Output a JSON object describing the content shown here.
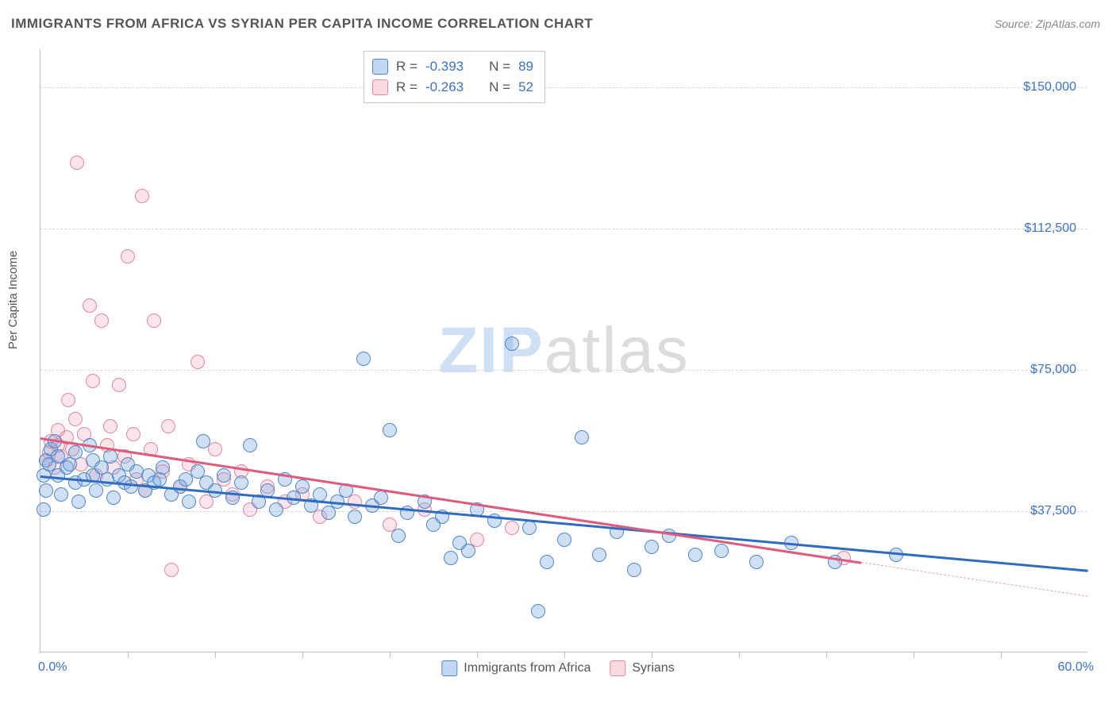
{
  "title": "IMMIGRANTS FROM AFRICA VS SYRIAN PER CAPITA INCOME CORRELATION CHART",
  "source": "Source: ZipAtlas.com",
  "yaxis_label": "Per Capita Income",
  "watermark": {
    "zip": "ZIP",
    "atlas": "atlas"
  },
  "chart": {
    "type": "scatter",
    "background_color": "#ffffff",
    "grid_color": "#d7d7d7",
    "axis_color": "#bfbfbf",
    "tick_label_color": "#3a72c8",
    "xlim": [
      0,
      60
    ],
    "ylim": [
      0,
      160000
    ],
    "yticks": [
      {
        "value": 37500,
        "label": "$37,500"
      },
      {
        "value": 75000,
        "label": "$75,000"
      },
      {
        "value": 112500,
        "label": "$112,500"
      },
      {
        "value": 150000,
        "label": "$150,000"
      }
    ],
    "xticks_minor": [
      5,
      10,
      15,
      20,
      25,
      30,
      35,
      40,
      45,
      50,
      55
    ],
    "xaxis_label_left": "0.0%",
    "xaxis_label_right": "60.0%",
    "point_radius": 9,
    "series": [
      {
        "name": "Immigrants from Africa",
        "key": "blue",
        "fill_color": "rgba(120,167,224,0.35)",
        "stroke_color": "#4f87cf",
        "r_value": "-0.393",
        "n_value": "89",
        "trend": {
          "x1": 0,
          "y1": 47000,
          "x2": 60,
          "y2": 22000,
          "color": "#2f6bc0",
          "width": 3
        },
        "points": [
          [
            0.2,
            47000
          ],
          [
            0.2,
            38000
          ],
          [
            0.3,
            51000
          ],
          [
            0.3,
            43000
          ],
          [
            0.5,
            50000
          ],
          [
            0.6,
            54000
          ],
          [
            0.8,
            56000
          ],
          [
            1.0,
            52000
          ],
          [
            1.0,
            47000
          ],
          [
            1.2,
            42000
          ],
          [
            1.5,
            49000
          ],
          [
            1.7,
            50000
          ],
          [
            2.0,
            53000
          ],
          [
            2.0,
            45000
          ],
          [
            2.2,
            40000
          ],
          [
            2.5,
            46000
          ],
          [
            2.8,
            55000
          ],
          [
            3.0,
            47000
          ],
          [
            3.0,
            51000
          ],
          [
            3.2,
            43000
          ],
          [
            3.5,
            49000
          ],
          [
            3.8,
            46000
          ],
          [
            4.0,
            52000
          ],
          [
            4.2,
            41000
          ],
          [
            4.5,
            47000
          ],
          [
            4.8,
            45000
          ],
          [
            5.0,
            50000
          ],
          [
            5.2,
            44000
          ],
          [
            5.5,
            48000
          ],
          [
            6.0,
            43000
          ],
          [
            6.2,
            47000
          ],
          [
            6.5,
            45000
          ],
          [
            6.8,
            46000
          ],
          [
            7.0,
            49000
          ],
          [
            7.5,
            42000
          ],
          [
            8.0,
            44000
          ],
          [
            8.3,
            46000
          ],
          [
            8.5,
            40000
          ],
          [
            9.0,
            48000
          ],
          [
            9.3,
            56000
          ],
          [
            9.5,
            45000
          ],
          [
            10.0,
            43000
          ],
          [
            10.5,
            47000
          ],
          [
            11.0,
            41000
          ],
          [
            11.5,
            45000
          ],
          [
            12.0,
            55000
          ],
          [
            12.5,
            40000
          ],
          [
            13.0,
            43000
          ],
          [
            13.5,
            38000
          ],
          [
            14.0,
            46000
          ],
          [
            14.5,
            41000
          ],
          [
            15.0,
            44000
          ],
          [
            15.5,
            39000
          ],
          [
            16.0,
            42000
          ],
          [
            16.5,
            37000
          ],
          [
            17.0,
            40000
          ],
          [
            17.5,
            43000
          ],
          [
            18.0,
            36000
          ],
          [
            18.5,
            78000
          ],
          [
            19.0,
            39000
          ],
          [
            19.5,
            41000
          ],
          [
            20.0,
            59000
          ],
          [
            20.5,
            31000
          ],
          [
            21.0,
            37000
          ],
          [
            22.0,
            40000
          ],
          [
            22.5,
            34000
          ],
          [
            23.0,
            36000
          ],
          [
            23.5,
            25000
          ],
          [
            24.0,
            29000
          ],
          [
            24.5,
            27000
          ],
          [
            25.0,
            38000
          ],
          [
            26.0,
            35000
          ],
          [
            27.0,
            82000
          ],
          [
            28.0,
            33000
          ],
          [
            29.0,
            24000
          ],
          [
            30.0,
            30000
          ],
          [
            31.0,
            57000
          ],
          [
            32.0,
            26000
          ],
          [
            33.0,
            32000
          ],
          [
            34.0,
            22000
          ],
          [
            35.0,
            28000
          ],
          [
            36.0,
            31000
          ],
          [
            37.5,
            26000
          ],
          [
            39.0,
            27000
          ],
          [
            41.0,
            24000
          ],
          [
            43.0,
            29000
          ],
          [
            45.5,
            24000
          ],
          [
            49.0,
            26000
          ],
          [
            28.5,
            11000
          ]
        ]
      },
      {
        "name": "Syrians",
        "key": "pink",
        "fill_color": "rgba(240,150,170,0.25)",
        "stroke_color": "#e3869e",
        "r_value": "-0.263",
        "n_value": "52",
        "trend": {
          "x1": 0,
          "y1": 57000,
          "x2": 47,
          "y2": 24000,
          "color": "#e05a7d",
          "width": 3
        },
        "trend_dash": {
          "x1": 47,
          "y1": 24000,
          "x2": 60,
          "y2": 15000,
          "color": "#e9a0b2"
        },
        "points": [
          [
            0.3,
            51000
          ],
          [
            0.5,
            53000
          ],
          [
            0.6,
            56000
          ],
          [
            0.8,
            49000
          ],
          [
            1.0,
            55000
          ],
          [
            1.0,
            59000
          ],
          [
            1.2,
            52000
          ],
          [
            1.5,
            57000
          ],
          [
            1.6,
            67000
          ],
          [
            1.8,
            54000
          ],
          [
            2.0,
            62000
          ],
          [
            2.1,
            130000
          ],
          [
            2.3,
            50000
          ],
          [
            2.5,
            58000
          ],
          [
            2.8,
            92000
          ],
          [
            3.0,
            72000
          ],
          [
            3.2,
            47000
          ],
          [
            3.5,
            88000
          ],
          [
            3.8,
            55000
          ],
          [
            4.0,
            60000
          ],
          [
            4.2,
            49000
          ],
          [
            4.5,
            71000
          ],
          [
            4.8,
            52000
          ],
          [
            5.0,
            105000
          ],
          [
            5.3,
            58000
          ],
          [
            5.5,
            46000
          ],
          [
            5.8,
            121000
          ],
          [
            6.0,
            43000
          ],
          [
            6.3,
            54000
          ],
          [
            6.5,
            88000
          ],
          [
            7.0,
            48000
          ],
          [
            7.3,
            60000
          ],
          [
            7.5,
            22000
          ],
          [
            8.0,
            44000
          ],
          [
            8.5,
            50000
          ],
          [
            9.0,
            77000
          ],
          [
            9.5,
            40000
          ],
          [
            10.0,
            54000
          ],
          [
            10.5,
            46000
          ],
          [
            11.0,
            42000
          ],
          [
            11.5,
            48000
          ],
          [
            12.0,
            38000
          ],
          [
            13.0,
            44000
          ],
          [
            14.0,
            40000
          ],
          [
            15.0,
            42000
          ],
          [
            16.0,
            36000
          ],
          [
            18.0,
            40000
          ],
          [
            20.0,
            34000
          ],
          [
            22.0,
            38000
          ],
          [
            25.0,
            30000
          ],
          [
            27.0,
            33000
          ],
          [
            46.0,
            25000
          ]
        ]
      }
    ]
  },
  "stats_box": {
    "rows": [
      {
        "swatch": "blue",
        "r_label": "R =",
        "r_value": "-0.393",
        "n_label": "N =",
        "n_value": "89"
      },
      {
        "swatch": "pink",
        "r_label": "R =",
        "r_value": "-0.263",
        "n_label": "N =",
        "n_value": "52"
      }
    ]
  },
  "bottom_legend": [
    {
      "swatch": "blue",
      "label": "Immigrants from Africa"
    },
    {
      "swatch": "pink",
      "label": "Syrians"
    }
  ]
}
